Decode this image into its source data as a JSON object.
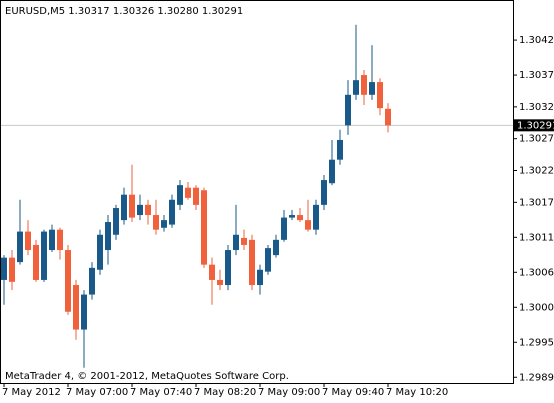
{
  "chart_data": {
    "type": "candlestick",
    "title": "EURUSD,M5  1.30317 1.30326 1.30280 1.30291",
    "footer": "MetaTrader 4, © 2001-2012, MetaQuotes Software Corp.",
    "categories": [
      "7 May 2012",
      null,
      null,
      null,
      null,
      null,
      null,
      null,
      "7 May 07:00",
      null,
      null,
      null,
      null,
      null,
      null,
      null,
      "7 May 07:40",
      null,
      null,
      null,
      null,
      null,
      null,
      null,
      "7 May 08:20",
      null,
      null,
      null,
      null,
      null,
      null,
      null,
      "7 May 09:00",
      null,
      null,
      null,
      null,
      null,
      null,
      null,
      "7 May 09:40",
      null,
      null,
      null,
      null,
      null,
      null,
      null,
      "7 May 10:20"
    ],
    "open": [
      1.30048,
      1.30083,
      1.30076,
      1.30124,
      1.30103,
      1.30048,
      1.30095,
      1.30127,
      1.30095,
      1.3004,
      1.2997,
      1.30025,
      1.30064,
      1.30095,
      1.30119,
      1.30142,
      1.30182,
      1.3015,
      1.30166,
      1.3015,
      1.3013,
      1.30135,
      1.30166,
      1.30193,
      1.30193,
      1.30189,
      1.30072,
      1.30048,
      1.3004,
      1.30095,
      1.30114,
      1.30111,
      1.3004,
      1.30061,
      1.30087,
      1.30111,
      1.30146,
      1.3015,
      1.30142,
      1.30127,
      1.30166,
      1.302,
      1.30237,
      1.30291,
      1.30339,
      1.3037,
      1.30339,
      1.30359,
      1.30317
    ],
    "high": [
      1.30087,
      1.30095,
      1.30174,
      1.30142,
      1.30111,
      1.30127,
      1.30135,
      1.3013,
      1.30103,
      1.30048,
      1.30032,
      1.30076,
      1.30127,
      1.3015,
      1.30166,
      1.30193,
      1.30229,
      1.30182,
      1.30174,
      1.30174,
      1.3015,
      1.30182,
      1.30205,
      1.30202,
      1.30197,
      1.30193,
      1.30083,
      1.30064,
      1.30103,
      1.30166,
      1.30127,
      1.30119,
      1.30072,
      1.30103,
      1.30119,
      1.30158,
      1.30158,
      1.30161,
      1.30174,
      1.30174,
      1.30213,
      1.30268,
      1.30284,
      1.30362,
      1.30449,
      1.30378,
      1.30417,
      1.30365,
      1.30326
    ],
    "low": [
      1.30009,
      1.30032,
      1.30072,
      1.30087,
      1.30045,
      1.30045,
      1.30092,
      1.3008,
      1.29993,
      1.29954,
      1.2991,
      1.30017,
      1.30056,
      1.30072,
      1.30111,
      1.30135,
      1.30139,
      1.30142,
      1.30135,
      1.30119,
      1.30124,
      1.3013,
      1.30158,
      1.30174,
      1.30158,
      1.30067,
      1.30009,
      1.30032,
      1.30032,
      1.30087,
      1.30095,
      1.30032,
      1.30025,
      1.30056,
      1.30083,
      1.30108,
      1.30142,
      1.30139,
      1.30124,
      1.30119,
      1.30158,
      1.30197,
      1.30229,
      1.30276,
      1.30331,
      1.30323,
      1.30331,
      1.30307,
      1.3028
    ],
    "close": [
      1.30083,
      1.30045,
      1.30124,
      1.30095,
      1.30048,
      1.30124,
      1.30127,
      1.30095,
      1.29998,
      1.2997,
      1.30025,
      1.30067,
      1.30119,
      1.30139,
      1.30161,
      1.30182,
      1.30146,
      1.30166,
      1.3015,
      1.30127,
      1.30142,
      1.30174,
      1.30197,
      1.30177,
      1.30166,
      1.30072,
      1.30048,
      1.3004,
      1.30095,
      1.30119,
      1.30103,
      1.3004,
      1.30064,
      1.30098,
      1.30111,
      1.30146,
      1.3015,
      1.30142,
      1.30127,
      1.30166,
      1.30205,
      1.30237,
      1.30268,
      1.30339,
      1.30362,
      1.30339,
      1.30359,
      1.30318,
      1.30291
    ],
    "up_color": "#1a5a8a",
    "down_color": "#f0613c",
    "last_price": 1.30291,
    "ylim": [
      1.29886,
      1.30488
    ],
    "yticks": [
      1.30425,
      {
        "value": 1.3037,
        "label": "1.30370"
      },
      {
        "value": 1.3032,
        "label": "1.30320"
      },
      {
        "value": 1.3027,
        "label": "1.30270"
      },
      {
        "value": 1.3022,
        "label": "1.30220"
      },
      {
        "value": 1.3017,
        "label": "1.30170"
      },
      1.30115,
      {
        "value": 1.3006,
        "label": "1.30060"
      },
      1.30005,
      {
        "value": 1.2995,
        "label": "1.29950"
      },
      1.29895
    ],
    "grid": false
  }
}
